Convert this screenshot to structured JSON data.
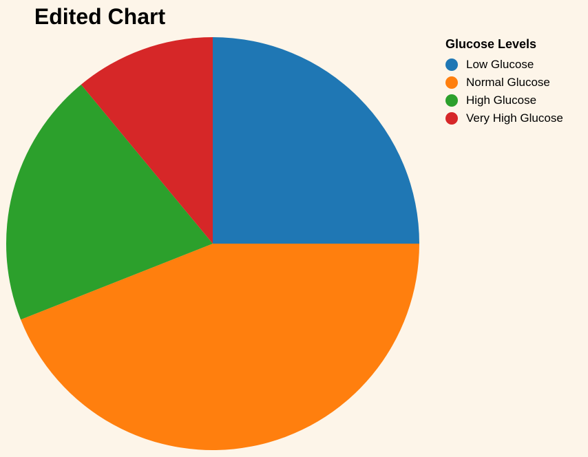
{
  "chart_data": {
    "type": "pie",
    "title": "Edited Chart",
    "legend_title": "Glucose Levels",
    "legend_placement": "top-right",
    "categories": [
      "Low Glucose",
      "Normal Glucose",
      "High Glucose",
      "Very High Glucose"
    ],
    "values": [
      25,
      44,
      20,
      11
    ],
    "colors": [
      "#1f77b4",
      "#ff7f0e",
      "#2ca02c",
      "#d62728"
    ]
  }
}
